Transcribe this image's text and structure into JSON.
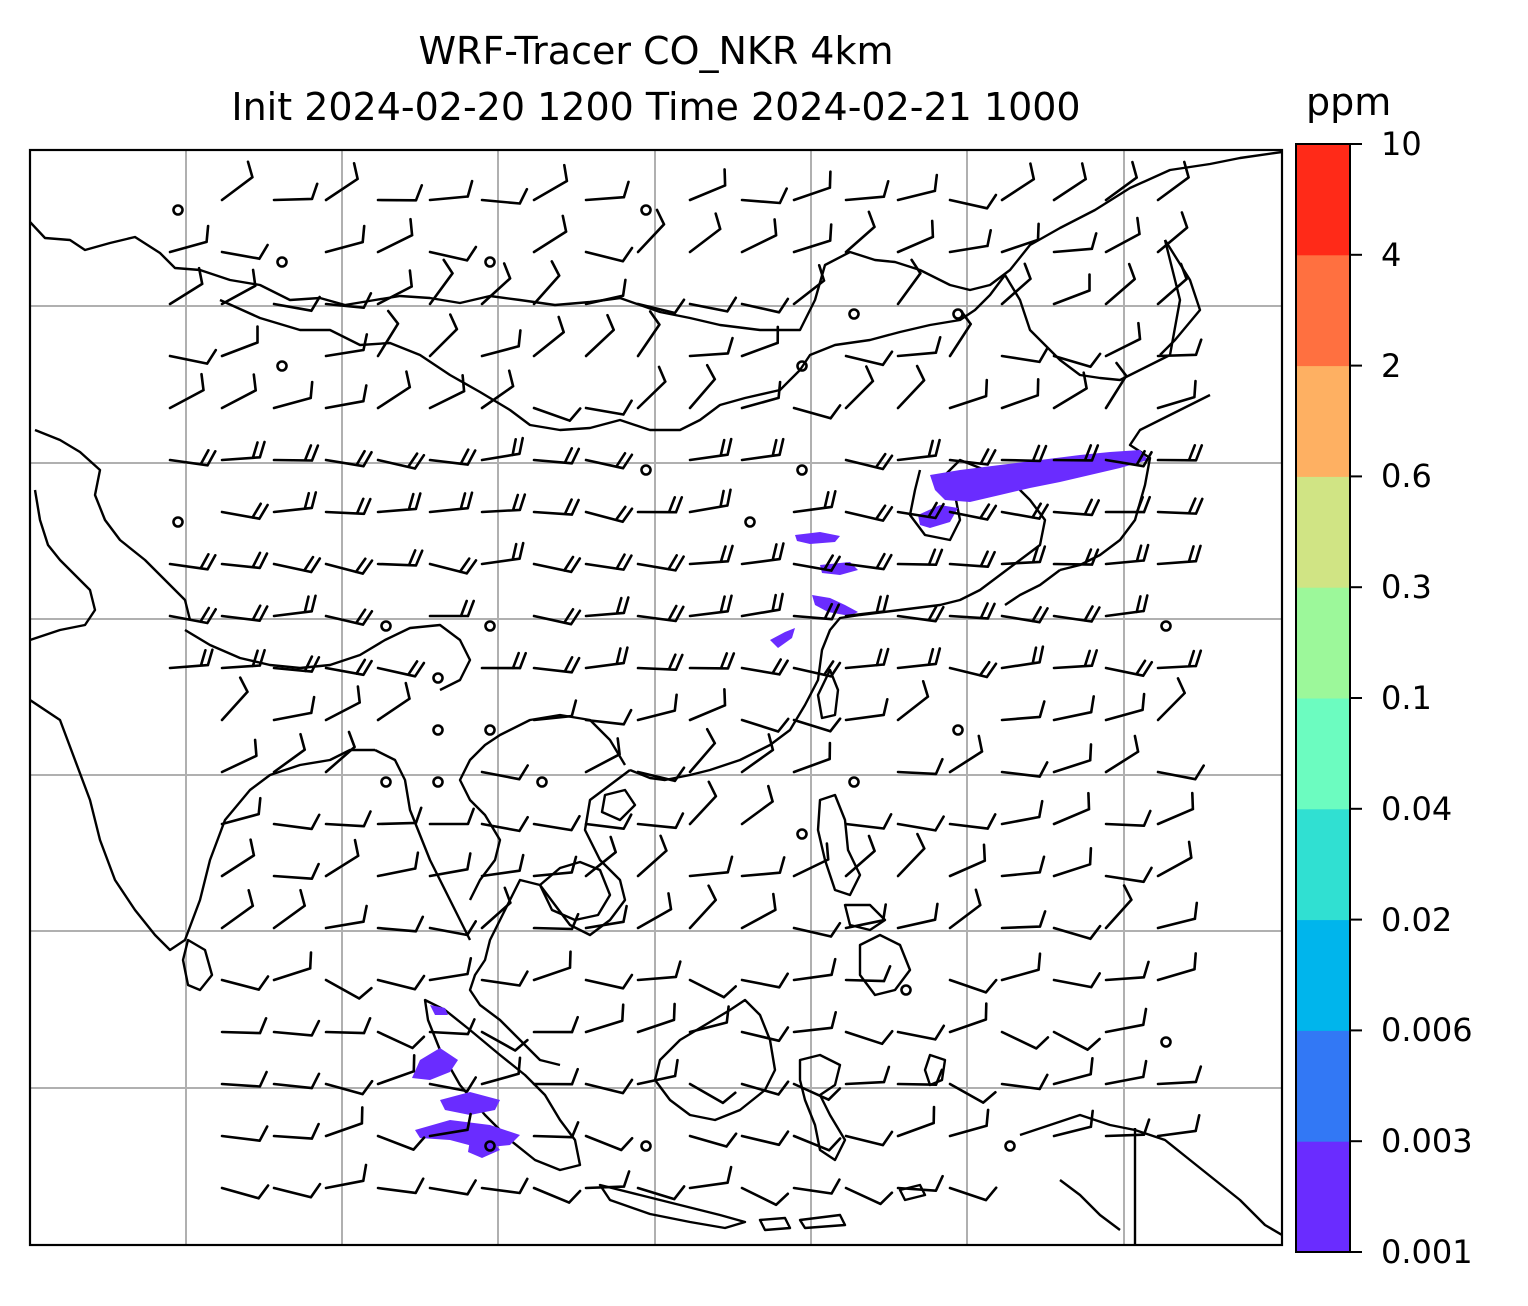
{
  "title": {
    "line1": "WRF-Tracer CO_NKR 4km",
    "line2": "Init 2024-02-20 1200 Time 2024-02-21 1000"
  },
  "colorbar": {
    "unit": "ppm",
    "levels": [
      "0.001",
      "0.003",
      "0.006",
      "0.02",
      "0.04",
      "0.1",
      "0.3",
      "0.6",
      "2",
      "4",
      "10"
    ],
    "colors": [
      "#6a2cff",
      "#3278f5",
      "#00b5ec",
      "#30e0d2",
      "#6cfcc0",
      "#9cf89a",
      "#d0e484",
      "#feb062",
      "#ff7040",
      "#ff2a18"
    ]
  },
  "map": {
    "gridlines": true,
    "tracer_color": "#6a2cff",
    "coastline_color": "#000000",
    "grid_color": "#b0b0b0"
  }
}
